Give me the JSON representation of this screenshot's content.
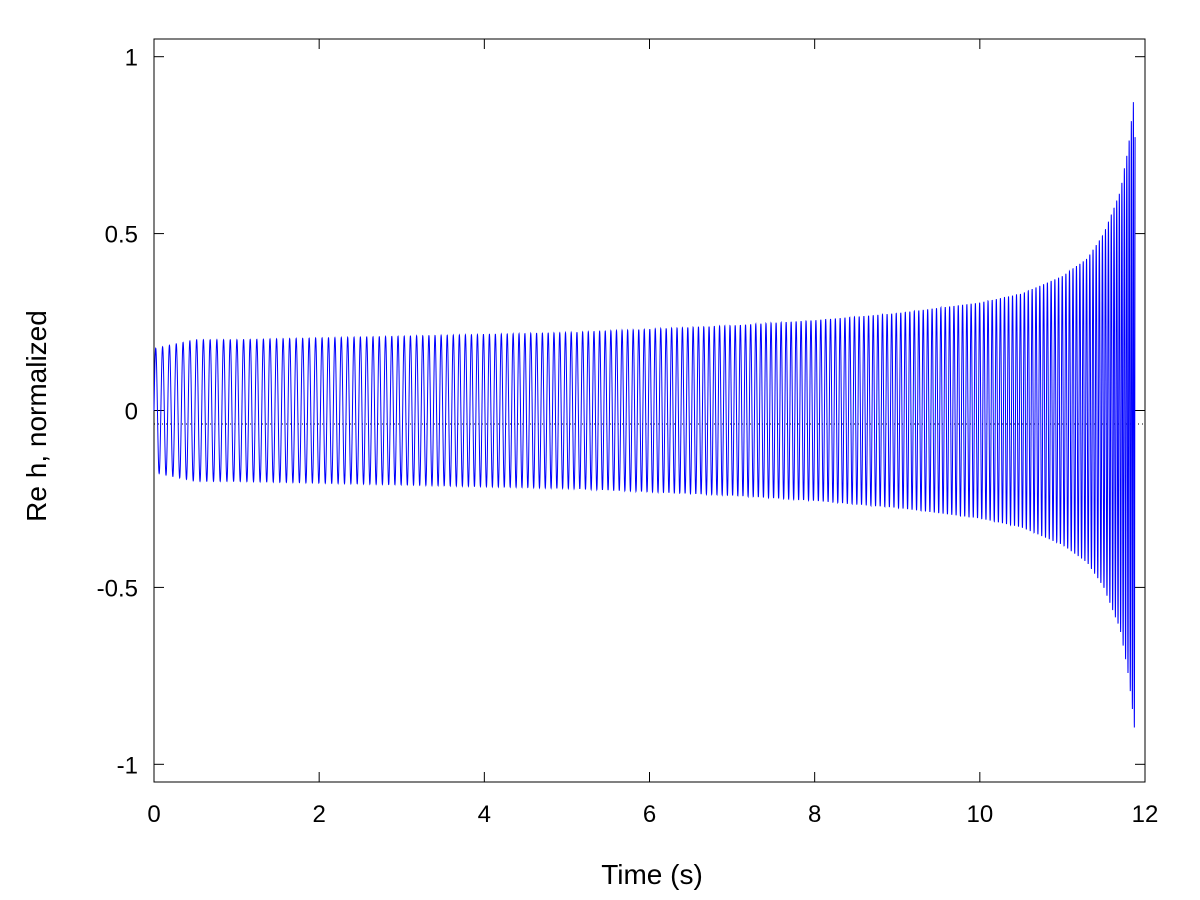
{
  "chart_data": {
    "type": "line",
    "title": "",
    "xlabel": "Time (s)",
    "ylabel": "Re h, normalized",
    "xlim": [
      0,
      12
    ],
    "ylim": [
      -1.05,
      1.05
    ],
    "xticks": [
      0,
      2,
      4,
      6,
      8,
      10,
      12
    ],
    "yticks": [
      -1,
      -0.5,
      0,
      0.5,
      1
    ],
    "xtick_labels": [
      "0",
      "2",
      "4",
      "6",
      "8",
      "10",
      "12"
    ],
    "ytick_labels": [
      "-1",
      "-0.5",
      "0",
      "0.5",
      "1"
    ],
    "grid": false,
    "legend": "none",
    "series": [
      {
        "color": "#0000ff",
        "t_start": 0.0,
        "t_end": 11.88,
        "envelope": {
          "t": [
            0.0,
            0.5,
            1.0,
            2.0,
            3.0,
            4.0,
            5.0,
            6.0,
            7.0,
            8.0,
            9.0,
            10.0,
            10.5,
            11.0,
            11.3,
            11.5,
            11.7,
            11.8,
            11.85,
            11.88
          ],
          "amplitude": [
            0.175,
            0.2,
            0.2,
            0.205,
            0.21,
            0.215,
            0.22,
            0.23,
            0.24,
            0.255,
            0.275,
            0.305,
            0.33,
            0.38,
            0.43,
            0.5,
            0.62,
            0.75,
            0.85,
            0.92
          ]
        },
        "frequency_hz": {
          "t": [
            0.0,
            2.0,
            4.0,
            6.0,
            8.0,
            10.0,
            11.0,
            11.5,
            11.8,
            11.88
          ],
          "f": [
            12.0,
            12.8,
            13.8,
            15.0,
            16.8,
            19.5,
            22.5,
            27.0,
            35.0,
            45.0
          ]
        }
      }
    ]
  }
}
